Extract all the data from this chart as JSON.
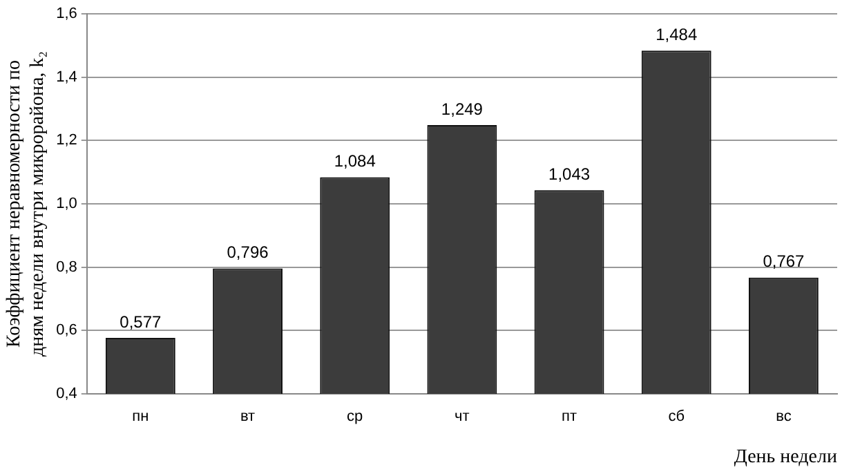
{
  "chart_data": {
    "type": "bar",
    "categories": [
      "пн",
      "вт",
      "ср",
      "чт",
      "пт",
      "сб",
      "вс"
    ],
    "values": [
      0.577,
      0.796,
      1.084,
      1.249,
      1.043,
      1.484,
      0.767
    ],
    "value_labels": [
      "0,577",
      "0,796",
      "1,084",
      "1,249",
      "1,043",
      "1,484",
      "0,767"
    ],
    "color": "#3c3c3c",
    "ylabel": "Коэффициент неравномерности по дням недели внутри микрорайона, k₂",
    "xlabel": "День недели",
    "ylim": [
      0.4,
      1.6
    ],
    "yticks": [
      {
        "value": 0.4,
        "label": "0,4"
      },
      {
        "value": 0.6,
        "label": "0,6"
      },
      {
        "value": 0.8,
        "label": "0,8"
      },
      {
        "value": 1.0,
        "label": "1,0"
      },
      {
        "value": 1.2,
        "label": "1,2"
      },
      {
        "value": 1.4,
        "label": "1,4"
      },
      {
        "value": 1.6,
        "label": "1,6"
      }
    ],
    "grid": "y",
    "legend": false
  }
}
